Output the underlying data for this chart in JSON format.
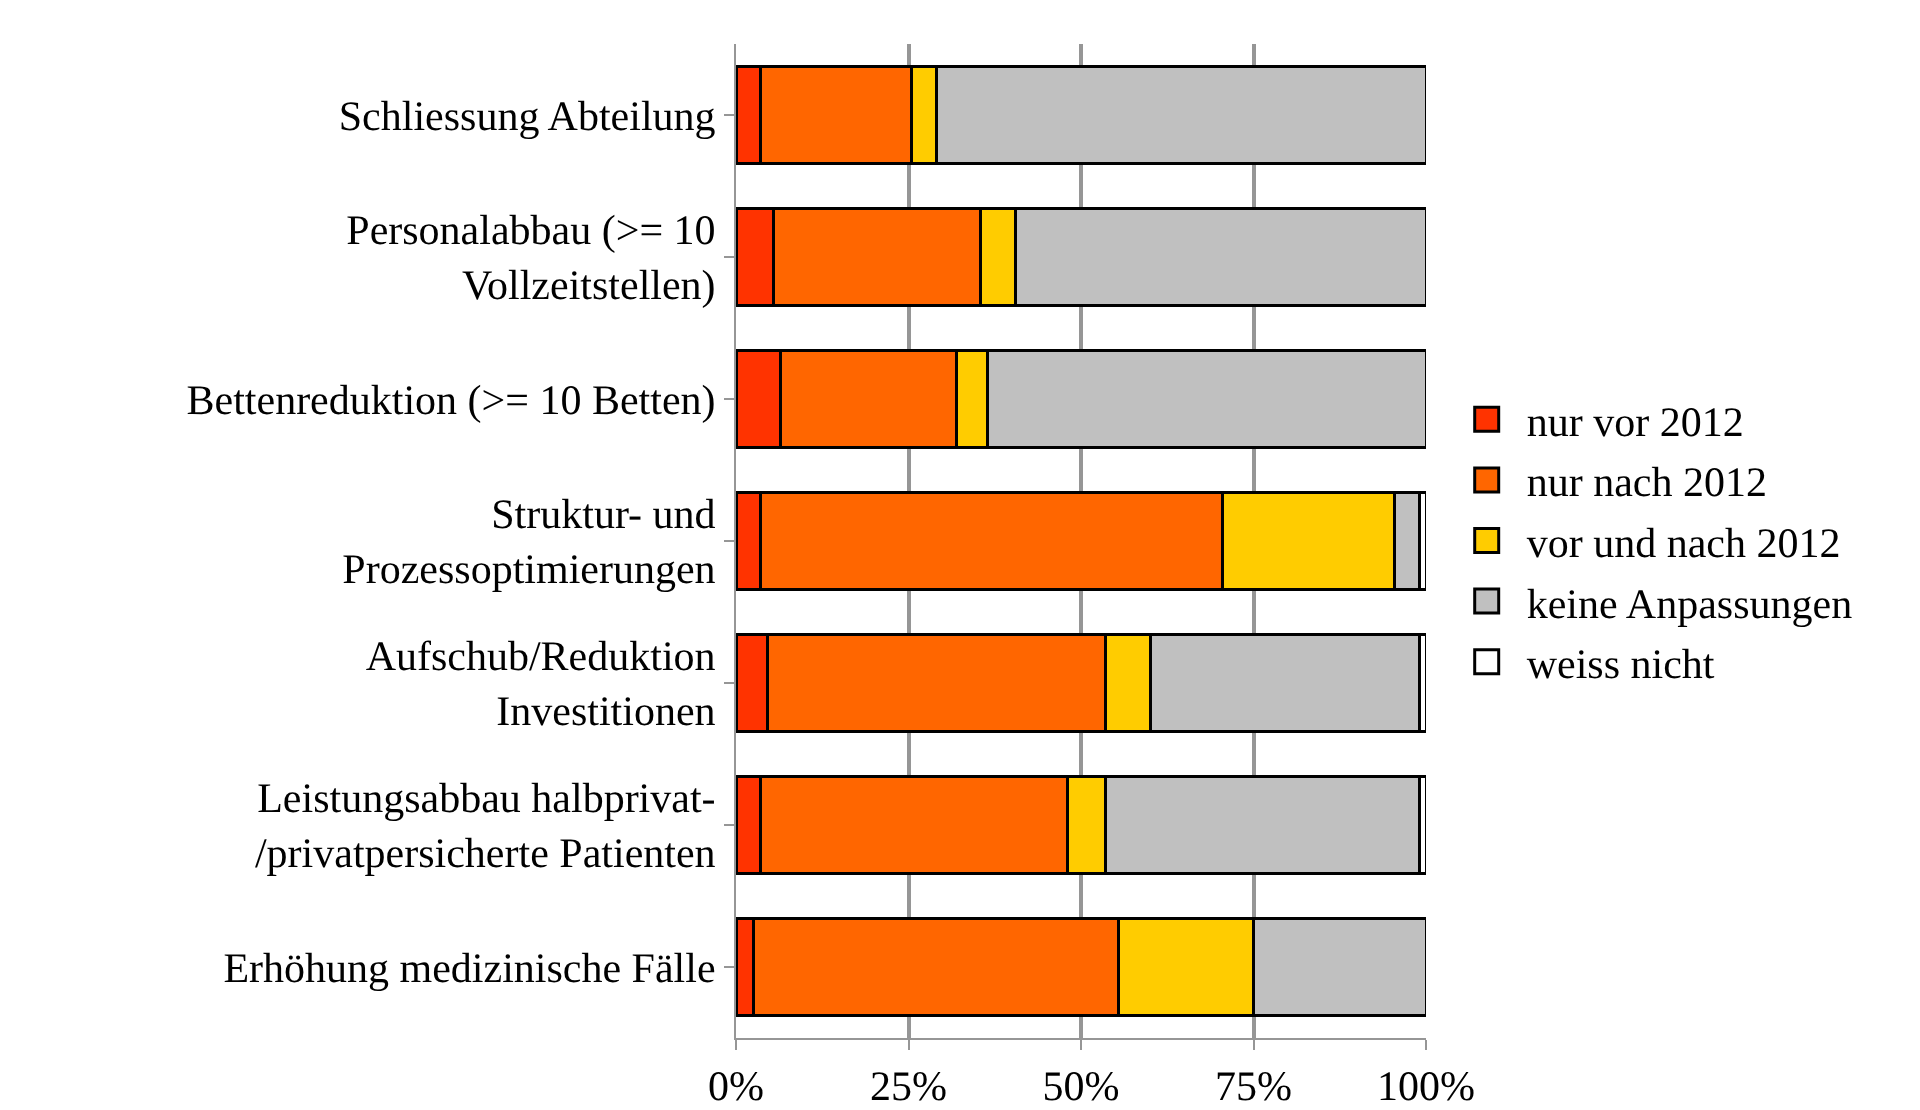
{
  "chart_data": {
    "type": "bar",
    "orientation": "horizontal",
    "stacked": true,
    "categories": [
      "Schliessung Abteilung",
      "Personalabbau (>= 10\nVollzeitstellen)",
      "Bettenreduktion (>= 10 Betten)",
      "Struktur- und\nProzessoptimierungen",
      "Aufschub/Reduktion\nInvestitionen",
      "Leistungsabbau halbprivat-\n/privatpersicherte Patienten",
      "Erhöhung medizinische Fälle"
    ],
    "series": [
      {
        "name": "nur vor 2012",
        "color": "#ff3300",
        "values": [
          3.5,
          5.5,
          6.5,
          3.5,
          4.5,
          3.5,
          2.5
        ]
      },
      {
        "name": "nur nach 2012",
        "color": "#ff6600",
        "values": [
          22,
          30,
          25.5,
          67,
          49,
          44.5,
          53
        ]
      },
      {
        "name": "vor und nach 2012",
        "color": "#ffcc00",
        "values": [
          3.5,
          5,
          4.5,
          25,
          6.5,
          5.5,
          19.5
        ]
      },
      {
        "name": "keine Anpassungen",
        "color": "#c0c0c0",
        "values": [
          71,
          59.5,
          63.5,
          3.5,
          39,
          45.5,
          25
        ]
      },
      {
        "name": "weiss nicht",
        "color": "#ffffff",
        "values": [
          null,
          null,
          null,
          1,
          1,
          1,
          null
        ]
      }
    ],
    "xlim": [
      0,
      100
    ],
    "xticks": [
      {
        "value": 0,
        "label": "0%"
      },
      {
        "value": 25,
        "label": "25%"
      },
      {
        "value": 50,
        "label": "50%"
      },
      {
        "value": 75,
        "label": "75%"
      },
      {
        "value": 100,
        "label": "100%"
      }
    ],
    "grid": "x",
    "legend": "right"
  }
}
